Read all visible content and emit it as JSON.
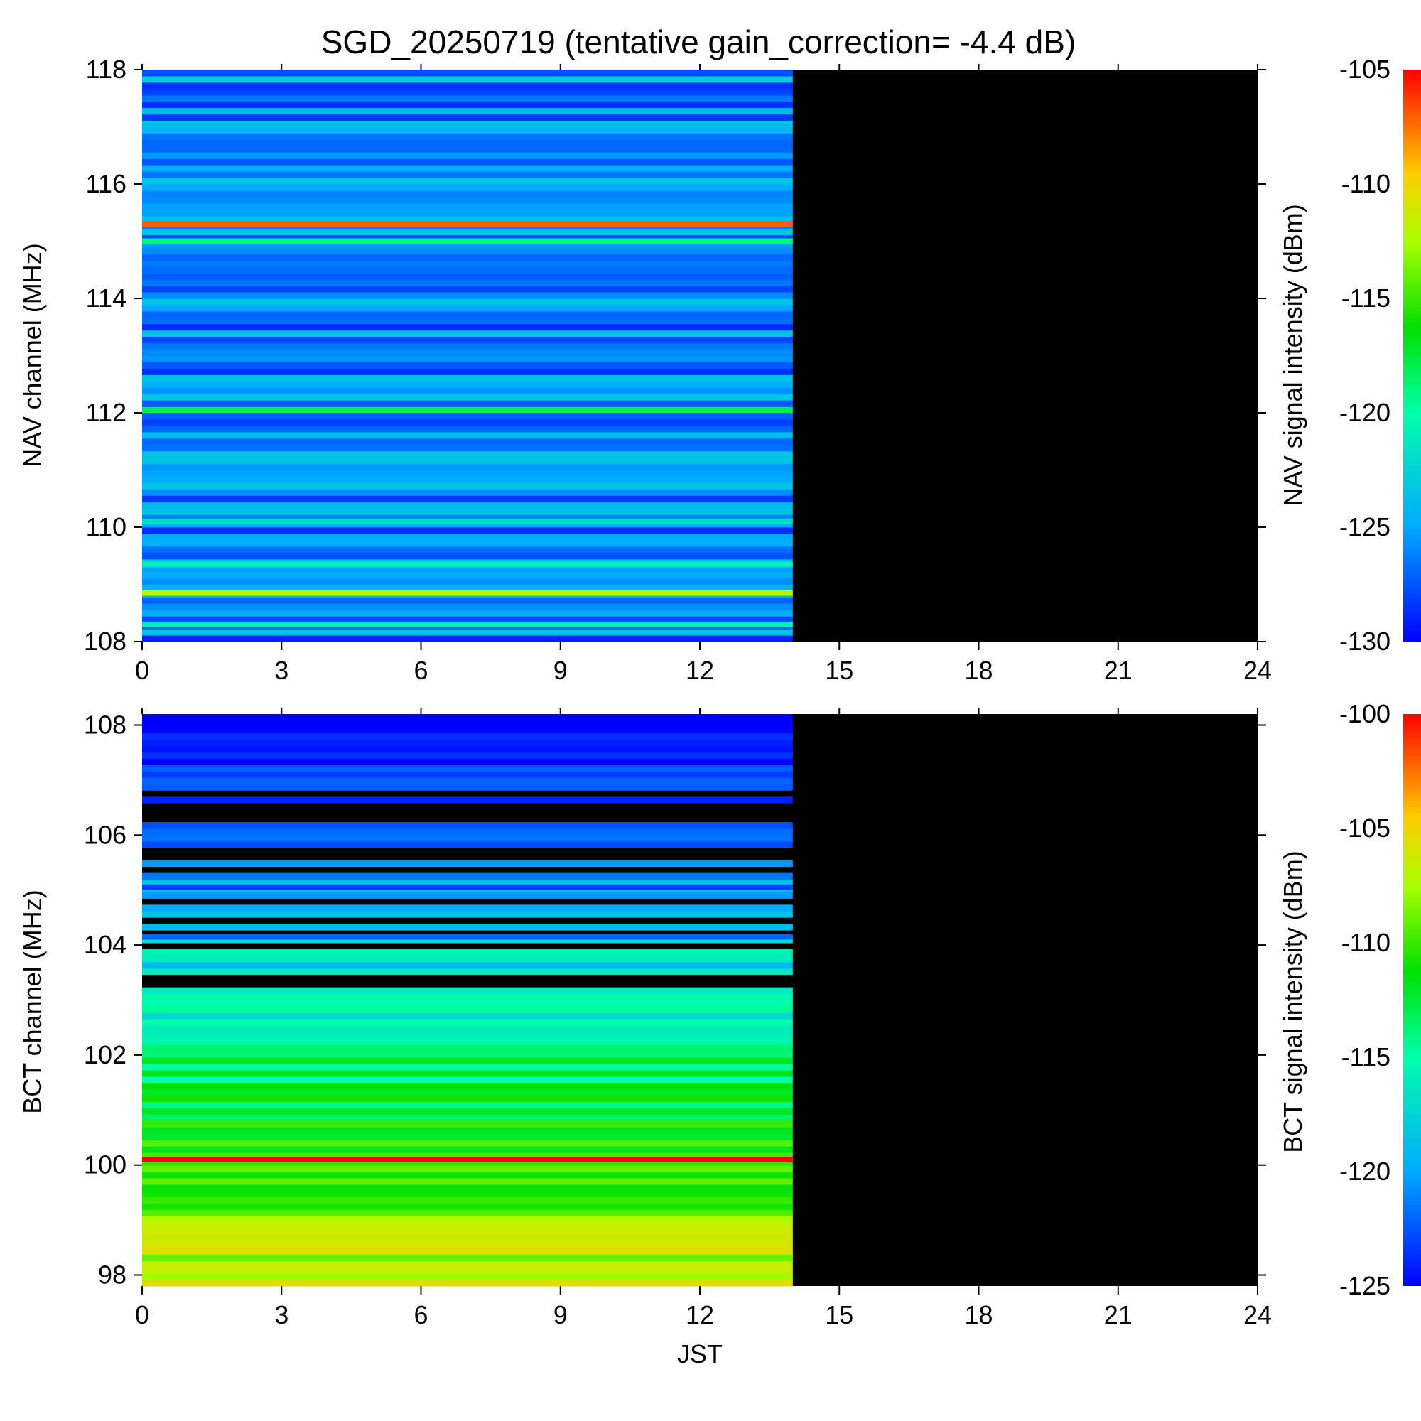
{
  "title": "SGD_20250719 (tentative gain_correction= -4.4 dB)",
  "chart_data": [
    {
      "type": "heatmap",
      "panel": "NAV",
      "xlabel": "",
      "ylabel": "NAV channel (MHz)",
      "x_ticks": [
        "0",
        "3",
        "6",
        "9",
        "12",
        "15",
        "18",
        "21",
        "24"
      ],
      "y_ticks": [
        "108",
        "110",
        "112",
        "114",
        "116",
        "118"
      ],
      "xlim": [
        0,
        24
      ],
      "ylim": [
        108,
        118
      ],
      "data_end_hour": 14,
      "no_data_color": "#000000",
      "colorbar": {
        "label": "NAV signal intensity (dBm)",
        "ticks": [
          "-105",
          "-110",
          "-115",
          "-120",
          "-125",
          "-130"
        ],
        "range": [
          -130,
          -105
        ]
      },
      "background_level": -126,
      "bands": [
        {
          "freq": 115.3,
          "level": -107
        },
        {
          "freq": 115.0,
          "level": -119
        },
        {
          "freq": 112.05,
          "level": -118
        },
        {
          "freq": 110.1,
          "level": -122
        },
        {
          "freq": 109.35,
          "level": -121
        },
        {
          "freq": 108.85,
          "level": -112
        },
        {
          "freq": 108.3,
          "level": -121
        }
      ]
    },
    {
      "type": "heatmap",
      "panel": "BCT",
      "xlabel": "JST",
      "ylabel": "BCT channel (MHz)",
      "x_ticks": [
        "0",
        "3",
        "6",
        "9",
        "12",
        "15",
        "18",
        "21",
        "24"
      ],
      "y_ticks": [
        "98",
        "100",
        "102",
        "104",
        "106",
        "108"
      ],
      "xlim": [
        0,
        24
      ],
      "ylim": [
        97.8,
        108.2
      ],
      "data_end_hour": 14,
      "no_data_color": "#000000",
      "colorbar": {
        "label": "BCT signal intensity (dBm)",
        "ticks": [
          "-100",
          "-105",
          "-110",
          "-115",
          "-120",
          "-125"
        ],
        "range": [
          -125,
          -100
        ]
      },
      "bands": [
        {
          "freq": 105.05,
          "level": -123
        },
        {
          "freq": 104.15,
          "level": -122
        },
        {
          "freq": 100.1,
          "level": -100
        },
        {
          "freq": 98.3,
          "level": -109
        }
      ]
    }
  ]
}
